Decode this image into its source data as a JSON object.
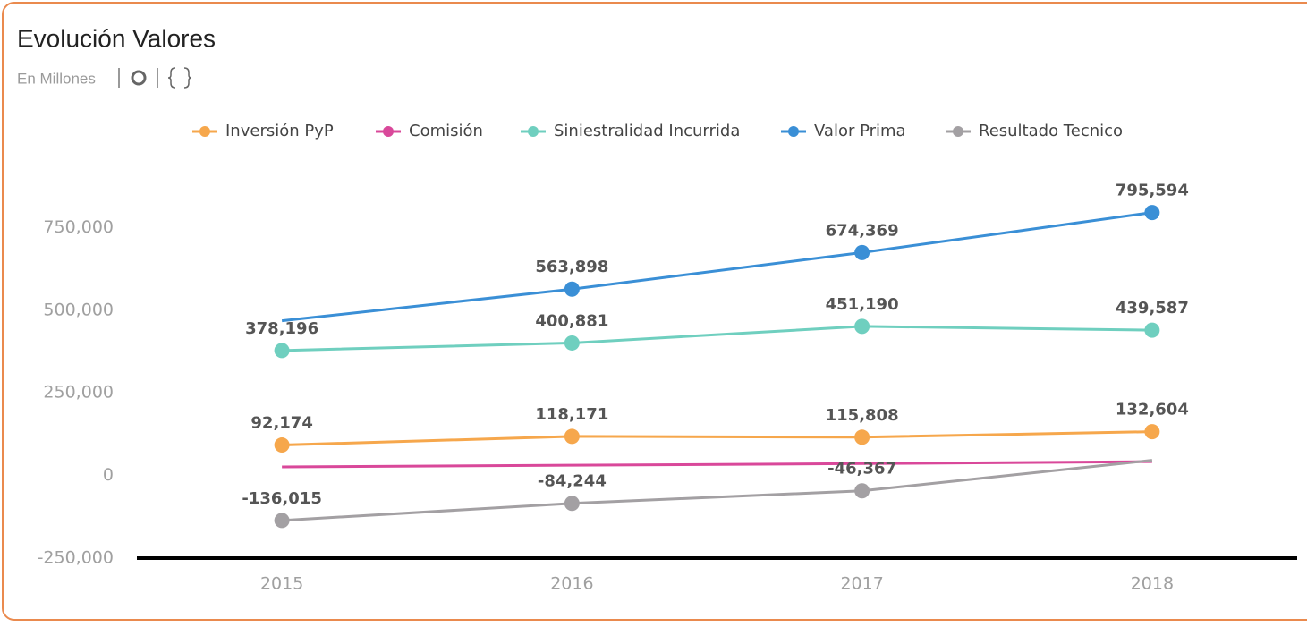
{
  "header": {
    "title": "Evolución Valores",
    "subtitle": "En Millones"
  },
  "chart_data": {
    "type": "line",
    "categories": [
      "2015",
      "2016",
      "2017",
      "2018"
    ],
    "series": [
      {
        "name": "Inversión PyP",
        "color": "#f6a74c",
        "values": [
          92174,
          118171,
          115808,
          132604
        ],
        "value_labels": [
          "92,174",
          "118,171",
          "115,808",
          "132,604"
        ]
      },
      {
        "name": "Comisión",
        "color": "#d9489a",
        "values": [
          26000,
          31000,
          36000,
          42000
        ]
      },
      {
        "name": "Siniestralidad Incurrida",
        "color": "#6fcfbf",
        "values": [
          378196,
          400881,
          451190,
          439587
        ],
        "value_labels": [
          "378,196",
          "400,881",
          "451,190",
          "439,587"
        ]
      },
      {
        "name": "Valor Prima",
        "color": "#3a8fd6",
        "values": [
          468000,
          563898,
          674369,
          795594
        ],
        "value_labels": [
          null,
          "563,898",
          "674,369",
          "795,594"
        ]
      },
      {
        "name": "Resultado Tecnico",
        "color": "#a3a0a3",
        "values": [
          -136015,
          -84244,
          -46367,
          46000
        ],
        "value_labels": [
          "-136,015",
          "-84,244",
          "-46,367",
          null
        ]
      }
    ],
    "ylim": [
      -250000,
      900000
    ],
    "yticks": [
      {
        "value": -250000,
        "label": "-250,000"
      },
      0,
      {
        "value": 250000,
        "label": "250,000"
      },
      {
        "value": 500000,
        "label": "500,000"
      },
      {
        "value": 750000,
        "label": "750,000"
      }
    ],
    "grid": false,
    "legend": "top"
  }
}
